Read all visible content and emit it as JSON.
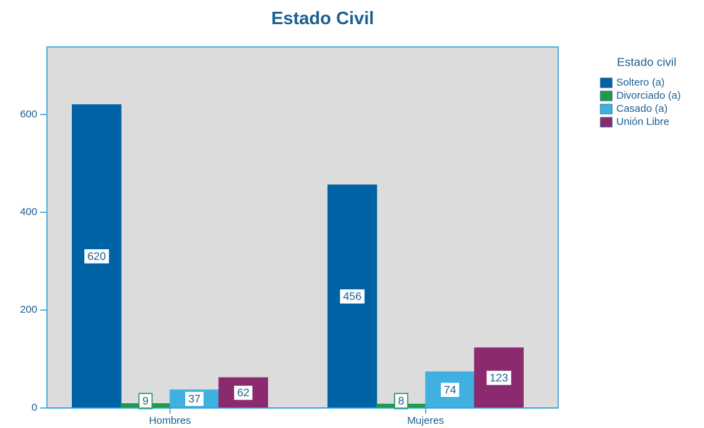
{
  "chart_data": {
    "type": "bar",
    "title": "Estado Civil",
    "legend_title": "Estado civil",
    "categories": [
      "Hombres",
      "Mujeres"
    ],
    "series": [
      {
        "name": "Soltero (a)",
        "color": "#0063a6",
        "values": [
          620,
          456
        ]
      },
      {
        "name": "Divorciado (a)",
        "color": "#1f9a4b",
        "values": [
          9,
          8
        ]
      },
      {
        "name": "Casado (a)",
        "color": "#3fb0e0",
        "values": [
          37,
          74
        ]
      },
      {
        "name": "Unión Libre",
        "color": "#8b2a6e",
        "values": [
          62,
          123
        ]
      }
    ],
    "ylim": [
      0,
      738
    ],
    "yticks": [
      0,
      200,
      400,
      600
    ],
    "grid": false,
    "legend": "right"
  }
}
